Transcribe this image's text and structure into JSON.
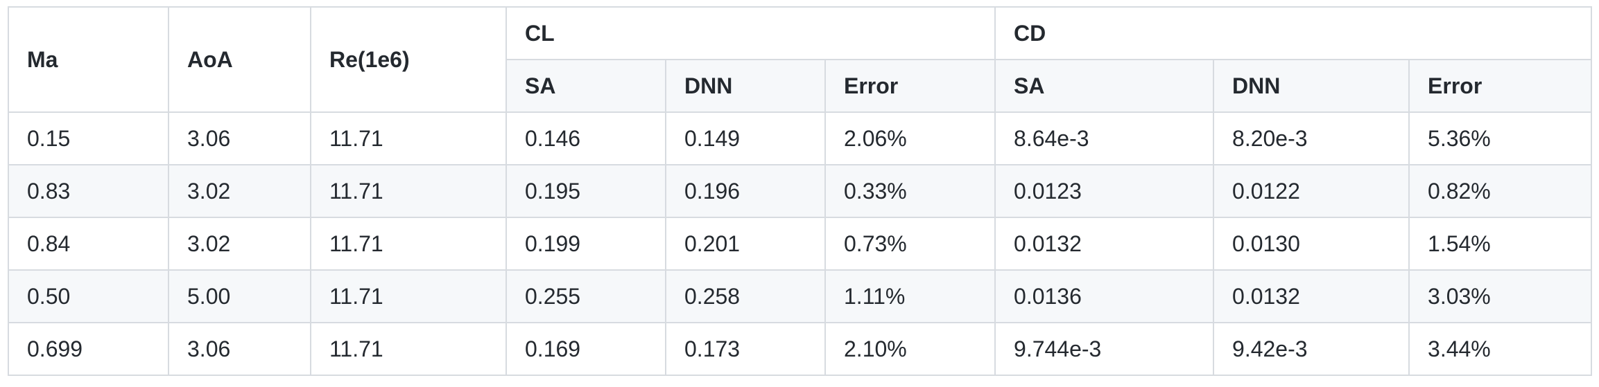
{
  "header": {
    "ma": "Ma",
    "aoa": "AoA",
    "re": "Re(1e6)",
    "cl": "CL",
    "cd": "CD",
    "cl_sub": [
      "SA",
      "DNN",
      "Error"
    ],
    "cd_sub": [
      "SA",
      "DNN",
      "Error"
    ]
  },
  "rows": [
    [
      "0.15",
      "3.06",
      "11.71",
      "0.146",
      "0.149",
      "2.06%",
      "8.64e-3",
      "8.20e-3",
      "5.36%"
    ],
    [
      "0.83",
      "3.02",
      "11.71",
      "0.195",
      "0.196",
      "0.33%",
      "0.0123",
      "0.0122",
      "0.82%"
    ],
    [
      "0.84",
      "3.02",
      "11.71",
      "0.199",
      "0.201",
      "0.73%",
      "0.0132",
      "0.0130",
      "1.54%"
    ],
    [
      "0.50",
      "5.00",
      "11.71",
      "0.255",
      "0.258",
      "1.11%",
      "0.0136",
      "0.0132",
      "3.03%"
    ],
    [
      "0.699",
      "3.06",
      "11.71",
      "0.169",
      "0.173",
      "2.10%",
      "9.744e-3",
      "9.42e-3",
      "3.44%"
    ]
  ]
}
